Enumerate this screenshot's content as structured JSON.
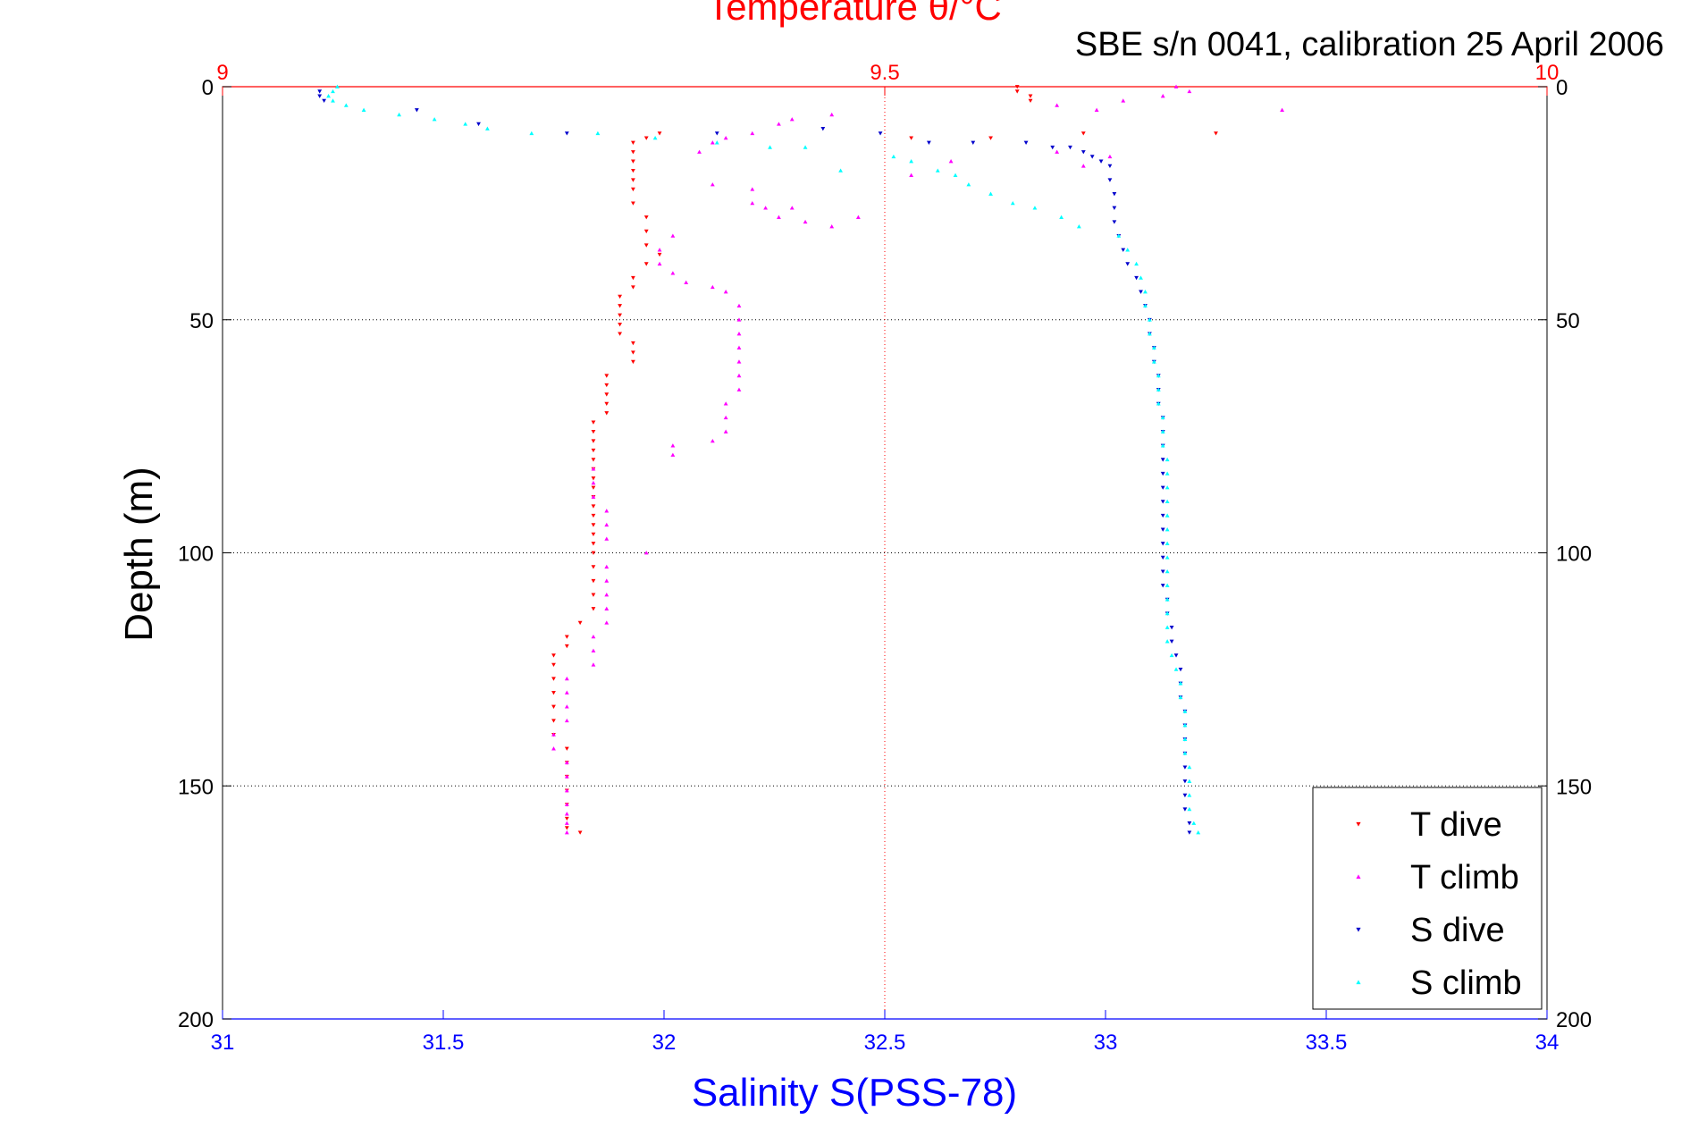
{
  "chart_data": {
    "type": "scatter",
    "title": "Temperature θ/°C",
    "subtitle": "SBE s/n 0041, calibration 25 April 2006",
    "xlabel": "Salinity S(PSS-78)",
    "ylabel": "Depth (m)",
    "colors": {
      "temperature_axis": "#ff0000",
      "salinity_axis": "#0000ff",
      "t_dive": "#ff0000",
      "t_climb": "#ff00ff",
      "s_dive": "#0000cc",
      "s_climb": "#00ffff"
    },
    "axes": {
      "salinity_x": {
        "range": [
          31,
          34
        ],
        "ticks": [
          "31",
          "31.5",
          "32",
          "32.5",
          "33",
          "33.5",
          "34"
        ]
      },
      "temperature_x": {
        "range": [
          9,
          10
        ],
        "ticks": [
          "9",
          "9.5",
          "10"
        ],
        "position": "top"
      },
      "depth_y": {
        "range": [
          0,
          200
        ],
        "reversed": true,
        "ticks": [
          "0",
          "50",
          "100",
          "150",
          "200"
        ]
      }
    },
    "grid": {
      "horizontal": true,
      "temperature_vertical": true
    },
    "legend": {
      "placement": "bottom-right",
      "entries": [
        "T dive",
        "T climb",
        "S dive",
        "S climb"
      ]
    },
    "series": [
      {
        "name": "T dive",
        "axis": "temperature",
        "marker": "triangle-down",
        "points": [
          [
            9.6,
            0
          ],
          [
            9.6,
            1
          ],
          [
            9.61,
            2
          ],
          [
            9.61,
            3
          ],
          [
            9.75,
            10
          ],
          [
            9.65,
            10
          ],
          [
            9.58,
            11
          ],
          [
            9.52,
            11
          ],
          [
            9.33,
            10
          ],
          [
            9.32,
            11
          ],
          [
            9.31,
            12
          ],
          [
            9.31,
            14
          ],
          [
            9.31,
            16
          ],
          [
            9.31,
            18
          ],
          [
            9.31,
            20
          ],
          [
            9.31,
            22
          ],
          [
            9.31,
            25
          ],
          [
            9.32,
            28
          ],
          [
            9.32,
            31
          ],
          [
            9.32,
            34
          ],
          [
            9.33,
            36
          ],
          [
            9.32,
            38
          ],
          [
            9.31,
            41
          ],
          [
            9.31,
            43
          ],
          [
            9.3,
            45
          ],
          [
            9.3,
            47
          ],
          [
            9.3,
            49
          ],
          [
            9.3,
            51
          ],
          [
            9.3,
            53
          ],
          [
            9.31,
            55
          ],
          [
            9.31,
            57
          ],
          [
            9.31,
            59
          ],
          [
            9.29,
            62
          ],
          [
            9.29,
            64
          ],
          [
            9.29,
            66
          ],
          [
            9.29,
            68
          ],
          [
            9.29,
            70
          ],
          [
            9.28,
            72
          ],
          [
            9.28,
            74
          ],
          [
            9.28,
            76
          ],
          [
            9.28,
            78
          ],
          [
            9.28,
            80
          ],
          [
            9.28,
            82
          ],
          [
            9.28,
            84
          ],
          [
            9.28,
            86
          ],
          [
            9.28,
            88
          ],
          [
            9.28,
            90
          ],
          [
            9.28,
            92
          ],
          [
            9.28,
            94
          ],
          [
            9.28,
            96
          ],
          [
            9.28,
            98
          ],
          [
            9.28,
            100
          ],
          [
            9.28,
            103
          ],
          [
            9.28,
            106
          ],
          [
            9.28,
            109
          ],
          [
            9.28,
            112
          ],
          [
            9.27,
            115
          ],
          [
            9.26,
            118
          ],
          [
            9.26,
            120
          ],
          [
            9.25,
            122
          ],
          [
            9.25,
            124
          ],
          [
            9.25,
            127
          ],
          [
            9.25,
            130
          ],
          [
            9.25,
            133
          ],
          [
            9.25,
            136
          ],
          [
            9.25,
            139
          ],
          [
            9.26,
            142
          ],
          [
            9.26,
            145
          ],
          [
            9.26,
            148
          ],
          [
            9.26,
            151
          ],
          [
            9.26,
            154
          ],
          [
            9.26,
            157
          ],
          [
            9.26,
            159
          ],
          [
            9.27,
            160
          ]
        ]
      },
      {
        "name": "T climb",
        "axis": "temperature",
        "marker": "triangle-up",
        "points": [
          [
            9.26,
            160
          ],
          [
            9.26,
            158
          ],
          [
            9.26,
            156
          ],
          [
            9.26,
            154
          ],
          [
            9.26,
            151
          ],
          [
            9.26,
            148
          ],
          [
            9.26,
            145
          ],
          [
            9.25,
            142
          ],
          [
            9.25,
            139
          ],
          [
            9.26,
            136
          ],
          [
            9.26,
            133
          ],
          [
            9.26,
            130
          ],
          [
            9.26,
            127
          ],
          [
            9.28,
            124
          ],
          [
            9.28,
            121
          ],
          [
            9.28,
            118
          ],
          [
            9.29,
            115
          ],
          [
            9.29,
            112
          ],
          [
            9.29,
            109
          ],
          [
            9.29,
            106
          ],
          [
            9.29,
            103
          ],
          [
            9.32,
            100
          ],
          [
            9.29,
            97
          ],
          [
            9.29,
            94
          ],
          [
            9.29,
            91
          ],
          [
            9.28,
            88
          ],
          [
            9.28,
            85
          ],
          [
            9.28,
            82
          ],
          [
            9.34,
            79
          ],
          [
            9.34,
            77
          ],
          [
            9.37,
            76
          ],
          [
            9.38,
            74
          ],
          [
            9.38,
            71
          ],
          [
            9.38,
            68
          ],
          [
            9.39,
            65
          ],
          [
            9.39,
            62
          ],
          [
            9.39,
            59
          ],
          [
            9.39,
            56
          ],
          [
            9.39,
            53
          ],
          [
            9.39,
            50
          ],
          [
            9.39,
            47
          ],
          [
            9.38,
            44
          ],
          [
            9.37,
            43
          ],
          [
            9.35,
            42
          ],
          [
            9.34,
            40
          ],
          [
            9.33,
            38
          ],
          [
            9.33,
            35
          ],
          [
            9.34,
            32
          ],
          [
            9.37,
            21
          ],
          [
            9.4,
            22
          ],
          [
            9.4,
            25
          ],
          [
            9.41,
            26
          ],
          [
            9.43,
            26
          ],
          [
            9.42,
            28
          ],
          [
            9.44,
            29
          ],
          [
            9.46,
            30
          ],
          [
            9.48,
            28
          ],
          [
            9.36,
            14
          ],
          [
            9.37,
            12
          ],
          [
            9.38,
            11
          ],
          [
            9.4,
            10
          ],
          [
            9.42,
            8
          ],
          [
            9.43,
            7
          ],
          [
            9.46,
            6
          ],
          [
            9.55,
            16
          ],
          [
            9.52,
            19
          ],
          [
            9.63,
            14
          ],
          [
            9.65,
            17
          ],
          [
            9.67,
            15
          ],
          [
            9.63,
            4
          ],
          [
            9.66,
            5
          ],
          [
            9.68,
            3
          ],
          [
            9.71,
            2
          ],
          [
            9.73,
            1
          ],
          [
            9.72,
            0
          ],
          [
            9.8,
            5
          ]
        ]
      },
      {
        "name": "S dive",
        "axis": "salinity",
        "marker": "triangle-down",
        "points": [
          [
            31.22,
            1
          ],
          [
            31.22,
            2
          ],
          [
            31.23,
            3
          ],
          [
            31.44,
            5
          ],
          [
            31.58,
            8
          ],
          [
            31.78,
            10
          ],
          [
            32.12,
            10
          ],
          [
            32.36,
            9
          ],
          [
            32.49,
            10
          ],
          [
            32.6,
            12
          ],
          [
            32.7,
            12
          ],
          [
            32.82,
            12
          ],
          [
            32.88,
            13
          ],
          [
            32.92,
            13
          ],
          [
            32.95,
            14
          ],
          [
            32.97,
            15
          ],
          [
            32.99,
            16
          ],
          [
            33.01,
            17
          ],
          [
            33.01,
            20
          ],
          [
            33.02,
            23
          ],
          [
            33.02,
            26
          ],
          [
            33.02,
            29
          ],
          [
            33.03,
            32
          ],
          [
            33.04,
            35
          ],
          [
            33.05,
            38
          ],
          [
            33.07,
            41
          ],
          [
            33.08,
            44
          ],
          [
            33.09,
            47
          ],
          [
            33.1,
            50
          ],
          [
            33.1,
            53
          ],
          [
            33.11,
            56
          ],
          [
            33.11,
            59
          ],
          [
            33.12,
            62
          ],
          [
            33.12,
            65
          ],
          [
            33.12,
            68
          ],
          [
            33.13,
            71
          ],
          [
            33.13,
            74
          ],
          [
            33.13,
            77
          ],
          [
            33.13,
            80
          ],
          [
            33.13,
            83
          ],
          [
            33.13,
            86
          ],
          [
            33.13,
            89
          ],
          [
            33.13,
            92
          ],
          [
            33.13,
            95
          ],
          [
            33.13,
            98
          ],
          [
            33.13,
            101
          ],
          [
            33.13,
            104
          ],
          [
            33.13,
            107
          ],
          [
            33.14,
            110
          ],
          [
            33.14,
            113
          ],
          [
            33.15,
            116
          ],
          [
            33.15,
            119
          ],
          [
            33.16,
            122
          ],
          [
            33.17,
            125
          ],
          [
            33.17,
            128
          ],
          [
            33.17,
            131
          ],
          [
            33.18,
            134
          ],
          [
            33.18,
            137
          ],
          [
            33.18,
            140
          ],
          [
            33.18,
            143
          ],
          [
            33.18,
            146
          ],
          [
            33.18,
            149
          ],
          [
            33.18,
            152
          ],
          [
            33.18,
            155
          ],
          [
            33.19,
            158
          ],
          [
            33.19,
            160
          ]
        ]
      },
      {
        "name": "S climb",
        "axis": "salinity",
        "marker": "triangle-up",
        "points": [
          [
            33.21,
            160
          ],
          [
            33.2,
            158
          ],
          [
            33.19,
            155
          ],
          [
            33.19,
            152
          ],
          [
            33.19,
            149
          ],
          [
            33.19,
            146
          ],
          [
            33.18,
            143
          ],
          [
            33.18,
            140
          ],
          [
            33.18,
            137
          ],
          [
            33.18,
            134
          ],
          [
            33.17,
            131
          ],
          [
            33.17,
            128
          ],
          [
            33.16,
            125
          ],
          [
            33.15,
            122
          ],
          [
            33.14,
            119
          ],
          [
            33.14,
            116
          ],
          [
            33.14,
            113
          ],
          [
            33.14,
            110
          ],
          [
            33.14,
            107
          ],
          [
            33.14,
            104
          ],
          [
            33.14,
            101
          ],
          [
            33.14,
            98
          ],
          [
            33.14,
            95
          ],
          [
            33.14,
            92
          ],
          [
            33.14,
            89
          ],
          [
            33.14,
            86
          ],
          [
            33.14,
            83
          ],
          [
            33.14,
            80
          ],
          [
            33.13,
            77
          ],
          [
            33.13,
            74
          ],
          [
            33.13,
            71
          ],
          [
            33.12,
            68
          ],
          [
            33.12,
            65
          ],
          [
            33.12,
            62
          ],
          [
            33.11,
            59
          ],
          [
            33.11,
            56
          ],
          [
            33.1,
            53
          ],
          [
            33.1,
            50
          ],
          [
            33.09,
            47
          ],
          [
            33.09,
            44
          ],
          [
            33.08,
            41
          ],
          [
            33.07,
            38
          ],
          [
            33.05,
            35
          ],
          [
            33.03,
            32
          ],
          [
            32.94,
            30
          ],
          [
            32.9,
            28
          ],
          [
            32.84,
            26
          ],
          [
            32.79,
            25
          ],
          [
            32.74,
            23
          ],
          [
            32.69,
            21
          ],
          [
            32.66,
            19
          ],
          [
            32.62,
            18
          ],
          [
            32.56,
            16
          ],
          [
            32.52,
            15
          ],
          [
            32.4,
            18
          ],
          [
            32.32,
            13
          ],
          [
            32.24,
            13
          ],
          [
            32.12,
            12
          ],
          [
            31.98,
            11
          ],
          [
            31.85,
            10
          ],
          [
            31.7,
            10
          ],
          [
            31.6,
            9
          ],
          [
            31.55,
            8
          ],
          [
            31.48,
            7
          ],
          [
            31.4,
            6
          ],
          [
            31.32,
            5
          ],
          [
            31.28,
            4
          ],
          [
            31.25,
            3
          ],
          [
            31.24,
            2
          ],
          [
            31.25,
            1
          ],
          [
            31.26,
            0
          ]
        ]
      }
    ]
  }
}
